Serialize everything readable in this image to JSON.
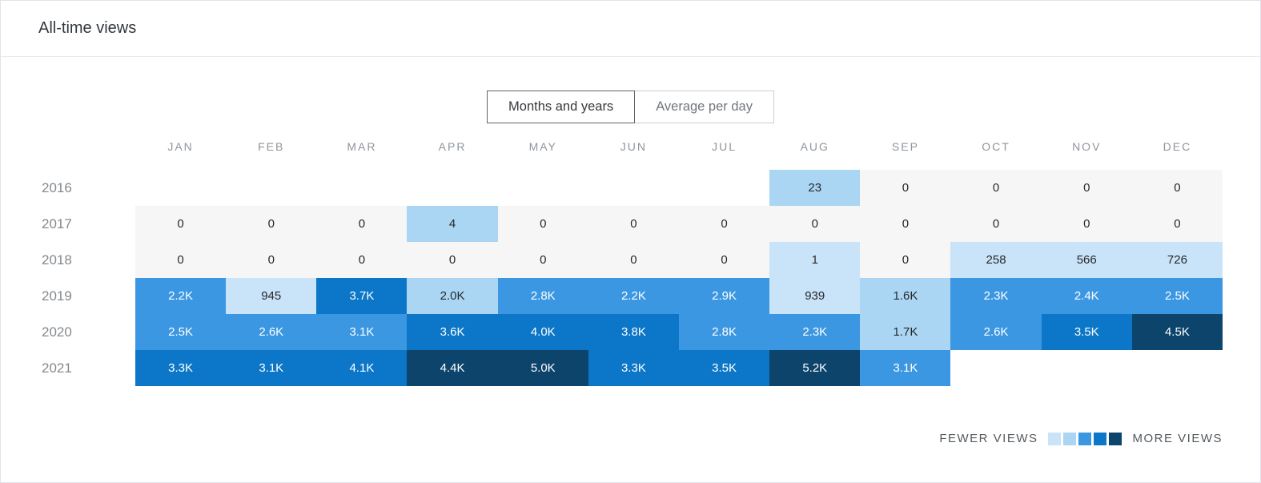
{
  "header": {
    "title": "All-time views"
  },
  "tabs": [
    {
      "label": "Months and years",
      "active": true
    },
    {
      "label": "Average per day",
      "active": false
    }
  ],
  "legend": {
    "fewer_label": "FEWER VIEWS",
    "more_label": "MORE VIEWS",
    "colors": [
      "#c9e3f8",
      "#aad6f4",
      "#3b97e2",
      "#0c77c8",
      "#0d446b"
    ]
  },
  "colors": {
    "zero_bg": "#f6f6f7",
    "dark_text": "#26282b",
    "light_text": "#ffffff"
  },
  "chart_data": {
    "type": "heatmap",
    "title": "All-time views",
    "columns": [
      "JAN",
      "FEB",
      "MAR",
      "APR",
      "MAY",
      "JUN",
      "JUL",
      "AUG",
      "SEP",
      "OCT",
      "NOV",
      "DEC"
    ],
    "legend_labels": [
      "FEWER VIEWS",
      "MORE VIEWS"
    ],
    "levels_meaning": "0=zero views (gray), 1=fewest views, 5=most views, null=no data",
    "rows": [
      {
        "year": "2016",
        "cells": [
          null,
          null,
          null,
          null,
          null,
          null,
          null,
          {
            "label": "23",
            "level": 2
          },
          {
            "label": "0",
            "level": 0
          },
          {
            "label": "0",
            "level": 0
          },
          {
            "label": "0",
            "level": 0
          },
          {
            "label": "0",
            "level": 0
          }
        ]
      },
      {
        "year": "2017",
        "cells": [
          {
            "label": "0",
            "level": 0
          },
          {
            "label": "0",
            "level": 0
          },
          {
            "label": "0",
            "level": 0
          },
          {
            "label": "4",
            "level": 2
          },
          {
            "label": "0",
            "level": 0
          },
          {
            "label": "0",
            "level": 0
          },
          {
            "label": "0",
            "level": 0
          },
          {
            "label": "0",
            "level": 0
          },
          {
            "label": "0",
            "level": 0
          },
          {
            "label": "0",
            "level": 0
          },
          {
            "label": "0",
            "level": 0
          },
          {
            "label": "0",
            "level": 0
          }
        ]
      },
      {
        "year": "2018",
        "cells": [
          {
            "label": "0",
            "level": 0
          },
          {
            "label": "0",
            "level": 0
          },
          {
            "label": "0",
            "level": 0
          },
          {
            "label": "0",
            "level": 0
          },
          {
            "label": "0",
            "level": 0
          },
          {
            "label": "0",
            "level": 0
          },
          {
            "label": "0",
            "level": 0
          },
          {
            "label": "1",
            "level": 1
          },
          {
            "label": "0",
            "level": 0
          },
          {
            "label": "258",
            "level": 1
          },
          {
            "label": "566",
            "level": 1
          },
          {
            "label": "726",
            "level": 1
          }
        ]
      },
      {
        "year": "2019",
        "cells": [
          {
            "label": "2.2K",
            "level": 3
          },
          {
            "label": "945",
            "level": 1
          },
          {
            "label": "3.7K",
            "level": 4
          },
          {
            "label": "2.0K",
            "level": 2
          },
          {
            "label": "2.8K",
            "level": 3
          },
          {
            "label": "2.2K",
            "level": 3
          },
          {
            "label": "2.9K",
            "level": 3
          },
          {
            "label": "939",
            "level": 1
          },
          {
            "label": "1.6K",
            "level": 2
          },
          {
            "label": "2.3K",
            "level": 3
          },
          {
            "label": "2.4K",
            "level": 3
          },
          {
            "label": "2.5K",
            "level": 3
          }
        ]
      },
      {
        "year": "2020",
        "cells": [
          {
            "label": "2.5K",
            "level": 3
          },
          {
            "label": "2.6K",
            "level": 3
          },
          {
            "label": "3.1K",
            "level": 3
          },
          {
            "label": "3.6K",
            "level": 4
          },
          {
            "label": "4.0K",
            "level": 4
          },
          {
            "label": "3.8K",
            "level": 4
          },
          {
            "label": "2.8K",
            "level": 3
          },
          {
            "label": "2.3K",
            "level": 3
          },
          {
            "label": "1.7K",
            "level": 2
          },
          {
            "label": "2.6K",
            "level": 3
          },
          {
            "label": "3.5K",
            "level": 4
          },
          {
            "label": "4.5K",
            "level": 5
          }
        ]
      },
      {
        "year": "2021",
        "cells": [
          {
            "label": "3.3K",
            "level": 4
          },
          {
            "label": "3.1K",
            "level": 4
          },
          {
            "label": "4.1K",
            "level": 4
          },
          {
            "label": "4.4K",
            "level": 5
          },
          {
            "label": "5.0K",
            "level": 5
          },
          {
            "label": "3.3K",
            "level": 4
          },
          {
            "label": "3.5K",
            "level": 4
          },
          {
            "label": "5.2K",
            "level": 5
          },
          {
            "label": "3.1K",
            "level": 3
          },
          null,
          null,
          null
        ]
      }
    ]
  }
}
